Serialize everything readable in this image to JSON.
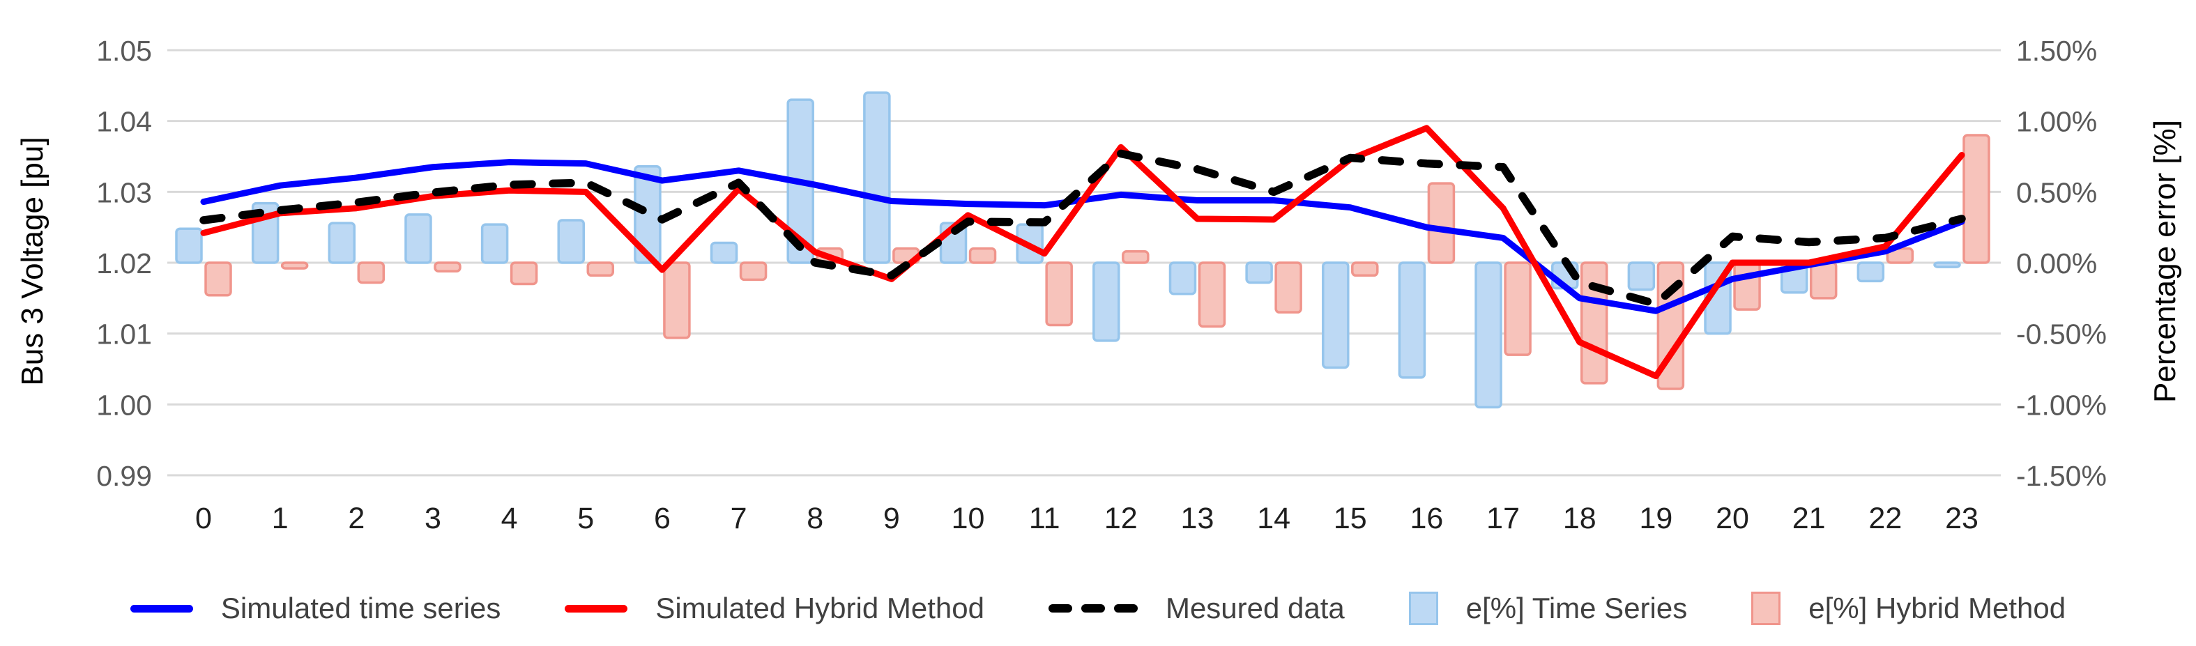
{
  "chart_data": {
    "type": "line+bar-dual-axis",
    "x": [
      0,
      1,
      2,
      3,
      4,
      5,
      6,
      7,
      8,
      9,
      10,
      11,
      12,
      13,
      14,
      15,
      16,
      17,
      18,
      19,
      20,
      21,
      22,
      23
    ],
    "series": [
      {
        "name": "Simulated time series",
        "type": "line",
        "axis": "left",
        "color": "#0000FE",
        "values": [
          1.0286,
          1.0309,
          1.032,
          1.0335,
          1.0342,
          1.034,
          1.0316,
          1.033,
          1.031,
          1.0287,
          1.0283,
          1.0281,
          1.0296,
          1.0288,
          1.0288,
          1.0278,
          1.025,
          1.0235,
          1.015,
          1.0132,
          1.0177,
          1.0197,
          1.0216,
          1.0258
        ]
      },
      {
        "name": "Simulated Hybrid Method",
        "type": "line",
        "axis": "left",
        "color": "#FE0000",
        "values": [
          1.0242,
          1.027,
          1.0277,
          1.0294,
          1.0302,
          1.03,
          1.019,
          1.0304,
          1.0215,
          1.0177,
          1.0267,
          1.0213,
          1.0363,
          1.0262,
          1.0261,
          1.0346,
          1.039,
          1.0277,
          1.0088,
          1.004,
          1.02,
          1.02,
          1.0223,
          1.0352
        ]
      },
      {
        "name": "Mesured data",
        "type": "line",
        "dashed": true,
        "axis": "left",
        "color": "#000000",
        "values": [
          1.026,
          1.0274,
          1.0285,
          1.0299,
          1.031,
          1.0313,
          1.0261,
          1.0313,
          1.02,
          1.0182,
          1.0258,
          1.0257,
          1.0354,
          1.0332,
          1.03,
          1.0348,
          1.034,
          1.0335,
          1.0172,
          1.0142,
          1.0237,
          1.0229,
          1.0235,
          1.0262
        ]
      },
      {
        "name": "e[%] Time Series",
        "type": "bar",
        "axis": "right",
        "fill": "#BDD9F4",
        "stroke": "#96C5EC",
        "values": [
          0.24,
          0.42,
          0.28,
          0.34,
          0.27,
          0.3,
          0.68,
          0.14,
          1.15,
          1.2,
          0.28,
          0.27,
          -0.55,
          -0.22,
          -0.14,
          -0.74,
          -0.81,
          -1.02,
          -0.18,
          -0.19,
          -0.5,
          -0.21,
          -0.13,
          -0.03
        ]
      },
      {
        "name": "e[%] Hybrid Method",
        "type": "bar",
        "axis": "right",
        "fill": "#F7C3BB",
        "stroke": "#F0958C",
        "values": [
          -0.23,
          -0.04,
          -0.14,
          -0.06,
          -0.15,
          -0.09,
          -0.53,
          -0.12,
          0.1,
          0.1,
          0.1,
          -0.44,
          0.08,
          -0.45,
          -0.35,
          -0.09,
          0.56,
          -0.65,
          -0.85,
          -0.89,
          -0.33,
          -0.25,
          0.1,
          0.9
        ]
      }
    ],
    "left_axis": {
      "title": "Bus 3 Voltage [pu]",
      "min": 0.99,
      "max": 1.05,
      "ticks": [
        "1.05",
        "1.04",
        "1.03",
        "1.02",
        "1.01",
        "1.00",
        "0.99"
      ]
    },
    "right_axis": {
      "title": "Percentage error [%]",
      "min": -1.5,
      "max": 1.5,
      "ticks": [
        "1.50%",
        "1.00%",
        "0.50%",
        "0.00%",
        "-0.50%",
        "-1.00%",
        "-1.50%"
      ]
    },
    "grid": "horizontal",
    "legend_position": "bottom",
    "colors": {
      "gridline": "#D9D9D9",
      "tick_text": "#595959",
      "x_tick_text": "#1f1f1f"
    }
  }
}
